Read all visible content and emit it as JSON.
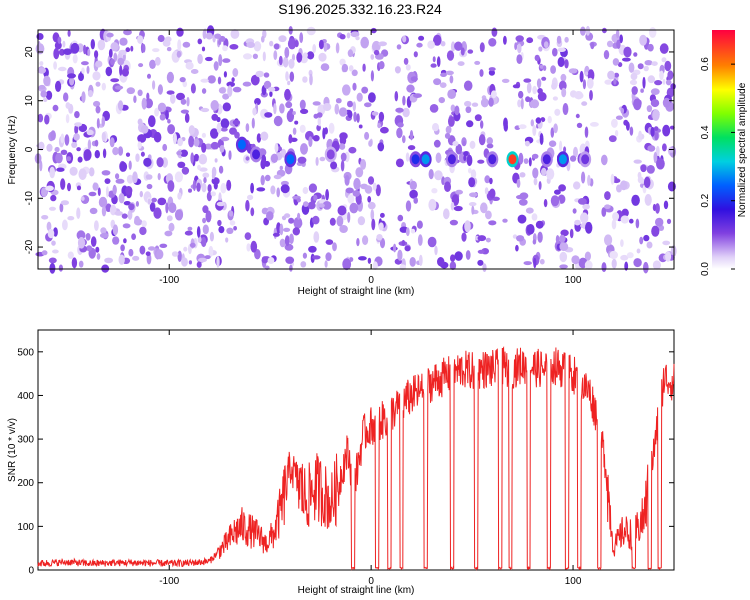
{
  "figure": {
    "title": "S196.2025.332.16.23.R24"
  },
  "chart_data": [
    {
      "type": "heatmap",
      "title": "S196.2025.332.16.23.R24",
      "xlabel": "Height of straight line (km)",
      "ylabel": "Frequency (Hz)",
      "xlim": [
        -165,
        150
      ],
      "ylim": [
        -24.5,
        24.5
      ],
      "xticks": [
        -100,
        0,
        100
      ],
      "yticks": [
        -20,
        -10,
        0,
        10,
        20
      ],
      "colorbar": {
        "label": "Normalized spectral amplitude",
        "range": [
          0.0,
          0.7
        ],
        "ticks": [
          0.0,
          0.2,
          0.4,
          0.6
        ]
      },
      "blank_columns_km": [
        -64,
        9,
        27,
        64,
        69,
        113
      ],
      "features": [
        {
          "x": -64,
          "y": 1,
          "amp": 0.25
        },
        {
          "x": -57,
          "y": -1,
          "amp": 0.15
        },
        {
          "x": -40,
          "y": -2,
          "amp": 0.25
        },
        {
          "x": -20,
          "y": -1,
          "amp": 0.1
        },
        {
          "x": 22,
          "y": -2,
          "amp": 0.2
        },
        {
          "x": 27,
          "y": -2,
          "amp": 0.28
        },
        {
          "x": 40,
          "y": -2,
          "amp": 0.15
        },
        {
          "x": 60,
          "y": -2,
          "amp": 0.15
        },
        {
          "x": 70,
          "y": -2,
          "amp": 0.65
        },
        {
          "x": 87,
          "y": -2,
          "amp": 0.15
        },
        {
          "x": 95,
          "y": -2,
          "amp": 0.28
        },
        {
          "x": 106,
          "y": -2,
          "amp": 0.12
        }
      ],
      "grid": false
    },
    {
      "type": "line",
      "xlabel": "Height of straight line (km)",
      "ylabel": "SNR (10 * v/v)",
      "xlim": [
        -165,
        150
      ],
      "ylim": [
        0,
        550
      ],
      "xticks": [
        -100,
        0,
        100
      ],
      "yticks": [
        0,
        100,
        200,
        300,
        400,
        500
      ],
      "color": "#ee2222",
      "series": [
        {
          "x": [
            -165,
            -150,
            -140,
            -120,
            -100,
            -90,
            -80,
            -76,
            -72,
            -68,
            -64,
            -60,
            -56,
            -52,
            -48,
            -44,
            -40,
            -36,
            -32,
            -28,
            -24,
            -20,
            -16,
            -12,
            -8,
            -4,
            0,
            5,
            10,
            15,
            20,
            25,
            30,
            35,
            40,
            45,
            50,
            55,
            60,
            65,
            70,
            75,
            80,
            85,
            90,
            95,
            100,
            105,
            108,
            112,
            116,
            120,
            125,
            130,
            135,
            140,
            145,
            150
          ],
          "values": [
            15,
            18,
            15,
            17,
            15,
            16,
            20,
            40,
            60,
            85,
            100,
            90,
            80,
            60,
            85,
            150,
            240,
            200,
            160,
            190,
            180,
            150,
            200,
            270,
            200,
            310,
            330,
            340,
            360,
            380,
            400,
            410,
            430,
            440,
            450,
            460,
            455,
            460,
            460,
            465,
            460,
            470,
            465,
            460,
            470,
            460,
            450,
            420,
            410,
            350,
            250,
            50,
            90,
            80,
            120,
            270,
            440,
            430
          ]
        }
      ],
      "dropouts_km": [
        -9,
        3,
        9,
        15,
        27,
        40,
        52,
        64,
        69,
        78,
        88,
        97,
        103,
        113,
        130,
        138,
        143
      ],
      "grid": false
    }
  ]
}
